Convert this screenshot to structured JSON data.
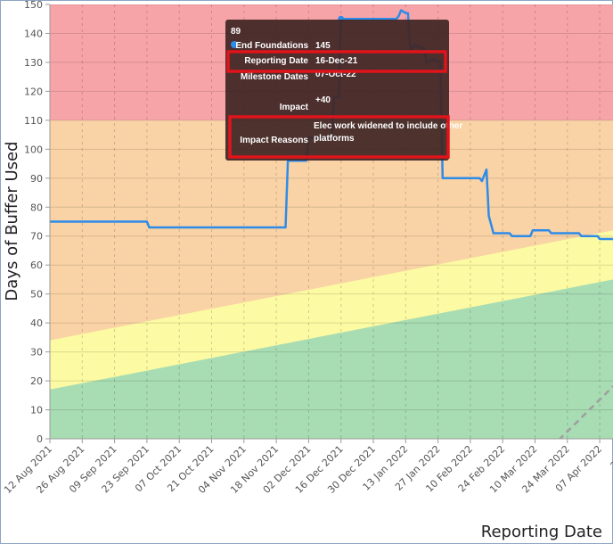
{
  "chart_data": {
    "type": "line",
    "title": "",
    "xlabel": "Reporting Date",
    "ylabel": "Days of Buffer Used",
    "ylim": [
      0,
      150
    ],
    "yticks": [
      0,
      10,
      20,
      30,
      40,
      50,
      60,
      70,
      80,
      90,
      100,
      110,
      120,
      130,
      140,
      150
    ],
    "x_tick_labels": [
      "12 Aug 2021",
      "26 Aug 2021",
      "09 Sep 2021",
      "23 Sep 2021",
      "07 Oct 2021",
      "21 Oct 2021",
      "04 Nov 2021",
      "18 Nov 2021",
      "02 Dec 2021",
      "16 Dec 2021",
      "30 Dec 2021",
      "13 Jan 2022",
      "27 Jan 2022",
      "10 Feb 2022",
      "24 Feb 2022",
      "10 Mar 2022",
      "24 Mar 2022",
      "07 Apr 2022",
      "21 Ap"
    ],
    "grid": true,
    "zones": [
      {
        "name": "red",
        "color": "#f7a4a8",
        "from_start": 110,
        "from_end": 110,
        "to": 150
      },
      {
        "name": "orange",
        "color": "#f9d3a5",
        "lower_start": 34,
        "lower_end": 72
      },
      {
        "name": "yellow",
        "color": "#fcfaa2",
        "lower_start": 17,
        "lower_end": 55
      },
      {
        "name": "green",
        "color": "#a8dcb3",
        "lower_start": 0,
        "lower_end": 0
      }
    ],
    "series": [
      {
        "name": "End Foundations",
        "color": "#2f8be8",
        "points": [
          [
            "2021-08-12",
            75
          ],
          [
            "2021-09-23",
            75
          ],
          [
            "2021-09-24",
            73
          ],
          [
            "2021-11-22",
            73
          ],
          [
            "2021-11-23",
            96
          ],
          [
            "2021-12-01",
            96
          ],
          [
            "2021-12-02",
            104
          ],
          [
            "2021-12-12",
            104
          ],
          [
            "2021-12-13",
            118
          ],
          [
            "2021-12-15",
            118
          ],
          [
            "2021-12-16",
            145
          ],
          [
            "2022-01-09",
            145
          ],
          [
            "2022-01-10",
            146
          ],
          [
            "2022-01-11",
            148
          ],
          [
            "2022-01-13",
            147
          ],
          [
            "2022-01-14",
            147
          ],
          [
            "2022-01-15",
            134
          ],
          [
            "2022-01-17",
            136
          ],
          [
            "2022-01-19",
            135
          ],
          [
            "2022-01-21",
            135
          ],
          [
            "2022-01-22",
            130
          ],
          [
            "2022-01-25",
            131
          ],
          [
            "2022-01-28",
            130
          ],
          [
            "2022-01-29",
            90
          ],
          [
            "2022-02-14",
            90
          ],
          [
            "2022-02-15",
            89
          ],
          [
            "2022-02-17",
            93
          ],
          [
            "2022-02-18",
            77
          ],
          [
            "2022-02-20",
            71
          ],
          [
            "2022-02-27",
            71
          ],
          [
            "2022-02-28",
            70
          ],
          [
            "2022-03-08",
            70
          ],
          [
            "2022-03-09",
            72
          ],
          [
            "2022-03-16",
            72
          ],
          [
            "2022-03-17",
            71
          ],
          [
            "2022-03-29",
            71
          ],
          [
            "2022-03-30",
            70
          ],
          [
            "2022-04-06",
            70
          ],
          [
            "2022-04-07",
            69
          ],
          [
            "2022-04-13",
            69
          ],
          [
            "2022-04-14",
            66
          ]
        ]
      },
      {
        "name": "trend",
        "color": "#9e9e9e",
        "dashed": true,
        "points": [
          [
            "2022-03-17",
            -3
          ],
          [
            "2022-04-14",
            19
          ]
        ]
      }
    ],
    "highlight_point": [
      "2021-12-16",
      145
    ]
  },
  "tooltip": {
    "header": "89",
    "series_label": "End Foundations",
    "series_value": "145",
    "rows": [
      {
        "label": "Reporting Date",
        "value": "16-Dec-21"
      },
      {
        "label": "Milestone Dates",
        "value": "07-Oct-22"
      },
      {
        "label": "Impact",
        "value": "+40"
      },
      {
        "label": "Impact Reasons",
        "value_line1": "Elec work widened to include other",
        "value_line2": "platforms"
      }
    ],
    "bg_color": "#3f2625",
    "highlight_color": "#e0141a"
  }
}
